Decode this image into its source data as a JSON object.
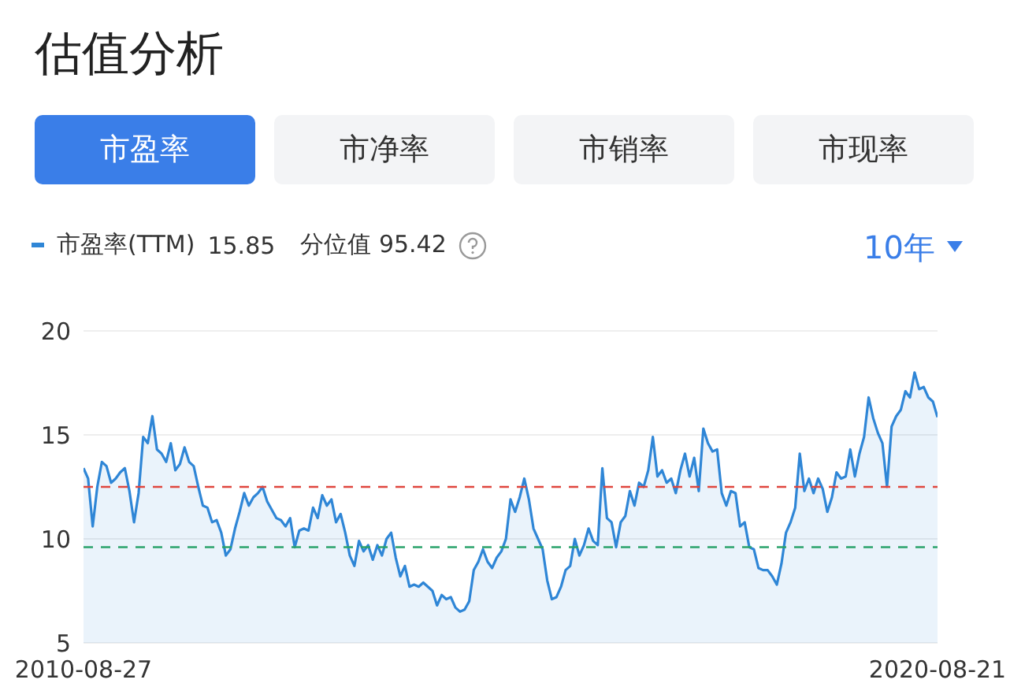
{
  "chart_data": {
    "type": "area",
    "title": "估值分析",
    "annotations": [
      "市盈率",
      "市净率",
      "市销率",
      "市现率",
      "15.85",
      "分位值 95.42",
      "10年"
    ],
    "categories": [
      "2010-08-27",
      null,
      null,
      null,
      null,
      null,
      null,
      null,
      null,
      null,
      null,
      null,
      null,
      null,
      null,
      null,
      null,
      null,
      null,
      null,
      null,
      null,
      null,
      null,
      null,
      null,
      null,
      null,
      null,
      null,
      null,
      null,
      null,
      null,
      null,
      null,
      null,
      null,
      null,
      null,
      null,
      null,
      null,
      null,
      null,
      null,
      null,
      null,
      null,
      null,
      null,
      null,
      null,
      null,
      null,
      null,
      null,
      null,
      null,
      null,
      null,
      null,
      null,
      null,
      null,
      null,
      null,
      null,
      null,
      null,
      null,
      null,
      null,
      null,
      null,
      null,
      null,
      null,
      null,
      null,
      null,
      null,
      null,
      null,
      null,
      null,
      null,
      null,
      null,
      null,
      null,
      null,
      null,
      null,
      null,
      null,
      null,
      null,
      null,
      null,
      null,
      null,
      null,
      null,
      null,
      null,
      null,
      null,
      null,
      null,
      null,
      null,
      null,
      null,
      null,
      null,
      null,
      null,
      null,
      null,
      null,
      null,
      null,
      null,
      null,
      null,
      null,
      null,
      null,
      null,
      null,
      null,
      null,
      null,
      null,
      null,
      null,
      null,
      null,
      null,
      null,
      null,
      null,
      null,
      null,
      null,
      null,
      null,
      null,
      null,
      null,
      null,
      null,
      null,
      null,
      null,
      null,
      null,
      null,
      null,
      null,
      null,
      null,
      null,
      null,
      null,
      null,
      null,
      null,
      null,
      null,
      null,
      null,
      null,
      null,
      null,
      null,
      null,
      null,
      null,
      null,
      null,
      null,
      null,
      null,
      null,
      "2020-08-21"
    ],
    "series": [
      {
        "name": "市盈率(TTM)",
        "color": "#2f86d6",
        "values": [
          13.4,
          12.9,
          10.6,
          12.5,
          13.7,
          13.5,
          12.7,
          12.9,
          13.2,
          13.4,
          12.3,
          10.8,
          12.2,
          14.9,
          14.6,
          15.9,
          14.3,
          14.1,
          13.7,
          14.6,
          13.3,
          13.6,
          14.4,
          13.7,
          13.5,
          12.5,
          11.6,
          11.5,
          10.8,
          10.9,
          10.3,
          9.2,
          9.5,
          10.5,
          11.3,
          12.2,
          11.6,
          12.0,
          12.2,
          12.5,
          11.8,
          11.4,
          11.0,
          10.9,
          10.6,
          11.0,
          9.6,
          10.4,
          10.5,
          10.4,
          11.5,
          11.0,
          12.1,
          11.6,
          11.9,
          10.8,
          11.2,
          10.3,
          9.2,
          8.7,
          9.9,
          9.4,
          9.7,
          9.0,
          9.7,
          9.2,
          10.0,
          10.3,
          9.1,
          8.2,
          8.7,
          7.7,
          7.8,
          7.7,
          7.9,
          7.7,
          7.5,
          6.8,
          7.3,
          7.1,
          7.2,
          6.7,
          6.5,
          6.6,
          7.0,
          8.5,
          8.9,
          9.5,
          8.9,
          8.6,
          9.1,
          9.4,
          10.0,
          11.9,
          11.3,
          12.0,
          12.9,
          11.9,
          10.5,
          10.0,
          9.5,
          8.0,
          7.1,
          7.2,
          7.7,
          8.5,
          8.7,
          10.0,
          9.2,
          9.7,
          10.5,
          9.9,
          9.7,
          13.4,
          11.0,
          10.8,
          9.6,
          10.8,
          11.1,
          12.3,
          11.6,
          12.7,
          12.5,
          13.3,
          14.9,
          13.0,
          13.3,
          12.7,
          12.9,
          12.2,
          13.3,
          14.1,
          13.0,
          13.9,
          12.3,
          15.3,
          14.6,
          14.2,
          14.3,
          12.2,
          11.6,
          12.3,
          12.2,
          10.6,
          10.8,
          9.6,
          9.5,
          8.6,
          8.5,
          8.5,
          8.2,
          7.8,
          8.8,
          10.3,
          10.8,
          11.5,
          14.1,
          12.3,
          12.9,
          12.2,
          12.9,
          12.4,
          11.3,
          12.0,
          13.2,
          12.9,
          13.0,
          14.3,
          13.0,
          14.1,
          14.9,
          16.8,
          15.8,
          15.1,
          14.6,
          12.5,
          15.4,
          15.9,
          16.2,
          17.1,
          16.8,
          18.0,
          17.2,
          17.3,
          16.8,
          16.6,
          15.85
        ]
      }
    ],
    "ylim": [
      5,
      20
    ],
    "yticks": [
      5,
      10,
      15,
      20
    ],
    "grid": "y",
    "legend": "top left",
    "marker": "none",
    "line_style": "solid",
    "ref_lines": [
      {
        "axis": "y",
        "value": 12.5,
        "color": "#e0463e",
        "line_style": "dashed"
      },
      {
        "axis": "y",
        "value": 9.6,
        "color": "#2aa36b",
        "line_style": "dashed"
      }
    ]
  }
}
